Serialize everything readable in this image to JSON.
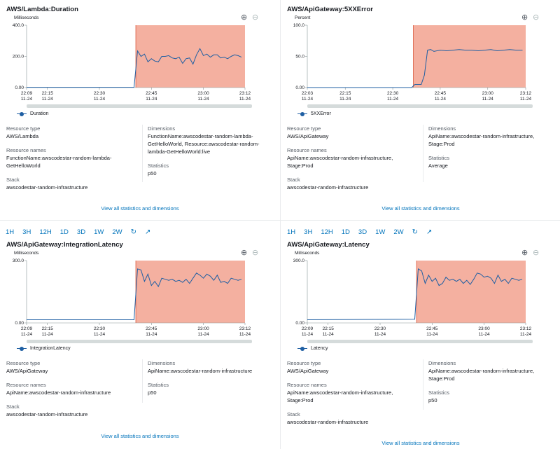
{
  "toolbar": {
    "ranges": [
      "1H",
      "3H",
      "12H",
      "1D",
      "3D",
      "1W",
      "2W"
    ],
    "refresh_icon": "refresh-icon",
    "open_icon": "external-link-icon"
  },
  "colors": {
    "alarm": "#f4b0a0",
    "line": "#1f5fa3",
    "link": "#0073bb"
  },
  "labels": {
    "resource_type": "Resource type",
    "resource_names": "Resource names",
    "stack": "Stack",
    "dimensions": "Dimensions",
    "statistics": "Statistics",
    "view_all": "View all statistics and dimensions"
  },
  "panels": [
    {
      "title": "AWS/Lambda:Duration",
      "unit": "Milliseconds",
      "resource_type": "AWS/Lambda",
      "resource_names": "FunctionName:awscodestar-random-lambda-GetHelloWorld",
      "stack": "awscodestar-random-infrastructure",
      "dimensions": "FunctionName:awscodestar-random-lambda-GetHelloWorld, Resource:awscodestar-random-lambda-GetHelloWorld:live",
      "statistics": "p50",
      "chart_data": {
        "type": "line",
        "ylabel": "Milliseconds",
        "ylim": [
          0,
          400
        ],
        "y_ticks": [
          "400.0",
          "200.0",
          "0.00"
        ],
        "x_ticks": [
          [
            "22:09",
            "11-24"
          ],
          [
            "22:15",
            "11-24"
          ],
          [
            "22:30",
            "11-24"
          ],
          [
            "22:45",
            "11-24"
          ],
          [
            "23:00",
            "11-24"
          ],
          [
            "23:12",
            "11-24"
          ]
        ],
        "x_tick_minutes": [
          0,
          6,
          21,
          36,
          51,
          63
        ],
        "alarm_start_minute": 31.5,
        "series": [
          {
            "name": "Duration",
            "x_minutes": [
              0,
              31,
              32,
              33,
              34,
              35,
              36,
              37,
              38,
              39,
              40,
              41,
              42,
              43,
              44,
              45,
              46,
              47,
              48,
              49,
              50,
              51,
              52,
              53,
              54,
              55,
              56,
              57,
              58,
              59,
              60,
              61,
              62
            ],
            "values": [
              2,
              2,
              235,
              200,
              215,
              165,
              185,
              170,
              165,
              200,
              200,
              205,
              190,
              185,
              195,
              155,
              185,
              190,
              150,
              210,
              250,
              205,
              215,
              195,
              210,
              210,
              190,
              195,
              185,
              200,
              210,
              205,
              195
            ]
          }
        ]
      }
    },
    {
      "title": "AWS/ApiGateway:5XXError",
      "unit": "Percent",
      "resource_type": "AWS/ApiGateway",
      "resource_names": "ApiName:awscodestar-random-infrastructure, Stage:Prod",
      "stack": "awscodestar-random-infrastructure",
      "dimensions": "ApiName:awscodestar-random-infrastructure, Stage:Prod",
      "statistics": "Average",
      "chart_data": {
        "type": "line",
        "ylabel": "Percent",
        "ylim": [
          0,
          100
        ],
        "y_ticks": [
          "100.0",
          "50.0",
          "0.00"
        ],
        "x_ticks": [
          [
            "22:03",
            "11-24"
          ],
          [
            "22:15",
            "11-24"
          ],
          [
            "22:30",
            "11-24"
          ],
          [
            "22:45",
            "11-24"
          ],
          [
            "23:00",
            "11-24"
          ],
          [
            "23:12",
            "11-24"
          ]
        ],
        "x_tick_minutes": [
          0,
          12,
          27,
          42,
          57,
          69
        ],
        "alarm_start_minute": 33.5,
        "series": [
          {
            "name": "5XXError",
            "x_minutes": [
              0,
              33,
              34,
              35,
              36,
              37,
              38,
              39,
              40,
              42,
              44,
              46,
              48,
              50,
              52,
              54,
              56,
              58,
              60,
              62,
              64,
              66,
              68
            ],
            "values": [
              0,
              0,
              5,
              5,
              5,
              20,
              60,
              61,
              58,
              60,
              59,
              60,
              61,
              60,
              60,
              59,
              60,
              61,
              59,
              60,
              61,
              60,
              60
            ]
          }
        ]
      }
    },
    {
      "title": "AWS/ApiGateway:IntegrationLatency",
      "unit": "Milliseconds",
      "resource_type": "AWS/ApiGateway",
      "resource_names": "ApiName:awscodestar-random-infrastructure",
      "stack": "awscodestar-random-infrastructure",
      "dimensions": "ApiName:awscodestar-random-infrastructure",
      "statistics": "p50",
      "chart_data": {
        "type": "line",
        "ylabel": "Milliseconds",
        "ylim": [
          0,
          300
        ],
        "y_ticks": [
          "300.0",
          "0.00"
        ],
        "x_ticks": [
          [
            "22:09",
            "11-24"
          ],
          [
            "22:15",
            "11-24"
          ],
          [
            "22:30",
            "11-24"
          ],
          [
            "22:45",
            "11-24"
          ],
          [
            "23:00",
            "11-24"
          ],
          [
            "23:12",
            "11-24"
          ]
        ],
        "x_tick_minutes": [
          0,
          6,
          21,
          36,
          51,
          63
        ],
        "alarm_start_minute": 31.5,
        "series": [
          {
            "name": "IntegrationLatency",
            "x_minutes": [
              0,
              31,
              32,
              33,
              34,
              35,
              36,
              37,
              38,
              39,
              40,
              41,
              42,
              43,
              44,
              45,
              46,
              47,
              48,
              49,
              50,
              51,
              52,
              53,
              54,
              55,
              56,
              57,
              58,
              59,
              60,
              61,
              62
            ],
            "values": [
              15,
              15,
              260,
              255,
              200,
              235,
              180,
              200,
              175,
              215,
              210,
              205,
              210,
              200,
              205,
              195,
              210,
              190,
              215,
              240,
              230,
              215,
              235,
              225,
              205,
              230,
              195,
              200,
              190,
              215,
              210,
              205,
              210
            ]
          }
        ]
      }
    },
    {
      "title": "AWS/ApiGateway:Latency",
      "unit": "Milliseconds",
      "resource_type": "AWS/ApiGateway",
      "resource_names": "ApiName:awscodestar-random-infrastructure, Stage:Prod",
      "stack": "awscodestar-random-infrastructure",
      "dimensions": "ApiName:awscodestar-random-infrastructure, Stage:Prod",
      "statistics": "p50",
      "chart_data": {
        "type": "line",
        "ylabel": "Milliseconds",
        "ylim": [
          0,
          300
        ],
        "y_ticks": [
          "300.0",
          "0.00"
        ],
        "x_ticks": [
          [
            "22:09",
            "11-24"
          ],
          [
            "22:15",
            "11-24"
          ],
          [
            "22:30",
            "11-24"
          ],
          [
            "22:45",
            "11-24"
          ],
          [
            "23:00",
            "11-24"
          ],
          [
            "23:12",
            "11-24"
          ]
        ],
        "x_tick_minutes": [
          0,
          6,
          21,
          36,
          51,
          63
        ],
        "alarm_start_minute": 31.5,
        "series": [
          {
            "name": "Latency",
            "x_minutes": [
              0,
              31,
              32,
              33,
              34,
              35,
              36,
              37,
              38,
              39,
              40,
              41,
              42,
              43,
              44,
              45,
              46,
              47,
              48,
              49,
              50,
              51,
              52,
              53,
              54,
              55,
              56,
              57,
              58,
              59,
              60,
              61,
              62
            ],
            "values": [
              15,
              18,
              260,
              250,
              190,
              230,
              200,
              215,
              180,
              190,
              220,
              205,
              210,
              200,
              210,
              190,
              205,
              185,
              210,
              240,
              235,
              220,
              225,
              215,
              190,
              230,
              200,
              210,
              190,
              215,
              210,
              205,
              210
            ]
          }
        ]
      }
    }
  ]
}
